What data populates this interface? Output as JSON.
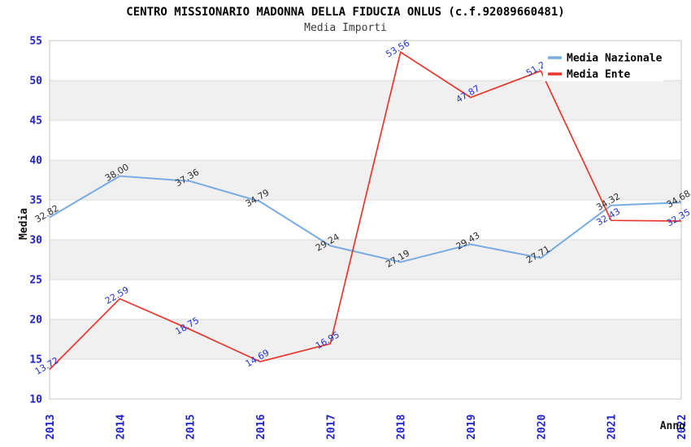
{
  "header": {
    "title": "CENTRO MISSIONARIO MADONNA DELLA FIDUCIA ONLUS (c.f.92089660481)",
    "subtitle": "Media Importi"
  },
  "chart_data": {
    "type": "line",
    "x": [
      2013,
      2014,
      2015,
      2016,
      2017,
      2018,
      2019,
      2020,
      2021,
      2022
    ],
    "xlabel": "Anno",
    "ylabel": "Media",
    "ylim": [
      10,
      55
    ],
    "ytick_step": 5,
    "grid": "horizontal-gridlines-with-alternating-bands",
    "legend_position": "top-right",
    "legend": [
      "Media Nazionale",
      "Media Ente"
    ],
    "series": [
      {
        "name": "Media Nazionale",
        "color": "#7aace4",
        "label_color": "#2b2b2b",
        "values": [
          32.82,
          38.0,
          37.36,
          34.79,
          29.24,
          27.19,
          29.43,
          27.71,
          34.32,
          34.68
        ],
        "labels": [
          "32.82",
          "38.00",
          "37.36",
          "34.79",
          "29.24",
          "27.19",
          "29.43",
          "27.71",
          "34.32",
          "34.68"
        ]
      },
      {
        "name": "Media Ente",
        "color": "#e8372c",
        "label_color": "#2233cc",
        "values": [
          13.72,
          22.59,
          18.75,
          14.69,
          16.95,
          53.56,
          47.87,
          51.2,
          32.43,
          32.35
        ],
        "labels": [
          "13.72",
          "22.59",
          "18.75",
          "14.69",
          "16.95",
          "53.56",
          "47.87",
          "51.20",
          "32.43",
          "32.35"
        ]
      }
    ]
  },
  "colors": {
    "background": "#ffffff",
    "band": "#f0f0f0",
    "gridline": "#dcdcdc",
    "plot_border": "#c4c4c4",
    "axis_tick_label": "#2222cc",
    "legend_background": "#ffffff",
    "title_text": "#000000",
    "subtitle_text": "#3a3a3a",
    "axis_title_text": "#111111"
  }
}
